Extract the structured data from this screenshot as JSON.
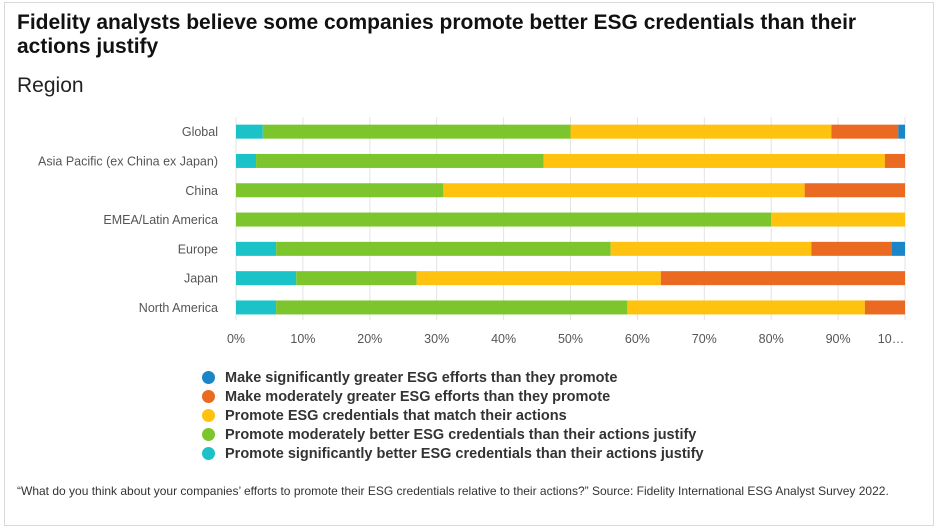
{
  "title": "Fidelity analysts believe some companies promote better ESG credentials than their actions justify",
  "subtitle": "Region",
  "footnote": "“What do you think about your companies’ efforts to promote their ESG credentials relative to their actions?” Source: Fidelity International ESG Analyst Survey 2022.",
  "chart_data": {
    "type": "bar",
    "orientation": "horizontal",
    "stacked": true,
    "categories": [
      "Global",
      "Asia Pacific (ex China ex Japan)",
      "China",
      "EMEA/Latin America",
      "Europe",
      "Japan",
      "North America"
    ],
    "x_ticks": [
      "0%",
      "10%",
      "20%",
      "30%",
      "40%",
      "50%",
      "60%",
      "70%",
      "80%",
      "90%",
      "10…"
    ],
    "xlim": [
      0,
      100
    ],
    "legend_position": "bottom",
    "series": [
      {
        "name": "Promote significantly better ESG credentials than their actions justify",
        "color": "#1bc3c8",
        "values": [
          4,
          3,
          0,
          0,
          6,
          9,
          6
        ]
      },
      {
        "name": "Promote moderately better ESG credentials than their actions justify",
        "color": "#7dc52d",
        "values": [
          46,
          43,
          31,
          80,
          50,
          18,
          52.5
        ]
      },
      {
        "name": "Promote ESG credentials that match their actions",
        "color": "#ffc20e",
        "values": [
          39,
          51,
          54,
          20,
          30,
          36.5,
          35.5
        ]
      },
      {
        "name": "Make moderately greater ESG efforts than they promote",
        "color": "#ea6a21",
        "values": [
          10,
          3,
          15,
          0,
          12,
          36.5,
          6
        ]
      },
      {
        "name": "Make significantly greater ESG efforts than they promote",
        "color": "#1a86c8",
        "values": [
          1,
          0,
          0,
          0,
          2,
          0,
          0
        ]
      }
    ],
    "legend_order": [
      4,
      3,
      2,
      1,
      0
    ]
  }
}
